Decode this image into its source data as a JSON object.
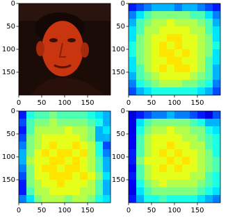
{
  "chart_data": [
    {
      "type": "image",
      "xlim": [
        0,
        200
      ],
      "ylim": [
        200,
        0
      ],
      "xticks": [
        0,
        50,
        100,
        150
      ],
      "yticks": [
        0,
        50,
        100,
        150
      ]
    },
    {
      "type": "heatmap",
      "colormap": "jet",
      "clim": [
        0,
        1
      ],
      "xlim": [
        0,
        200
      ],
      "ylim": [
        200,
        0
      ],
      "xticks": [
        0,
        50,
        100,
        150
      ],
      "yticks": [
        0,
        50,
        100,
        150
      ],
      "values": [
        [
          0.15,
          0.2,
          0.25,
          0.3,
          0.3,
          0.3,
          0.25,
          0.3,
          0.3,
          0.25,
          0.2,
          0.15
        ],
        [
          0.25,
          0.35,
          0.45,
          0.5,
          0.5,
          0.5,
          0.5,
          0.5,
          0.45,
          0.45,
          0.35,
          0.25
        ],
        [
          0.3,
          0.45,
          0.5,
          0.55,
          0.55,
          0.6,
          0.55,
          0.55,
          0.55,
          0.5,
          0.45,
          0.3
        ],
        [
          0.35,
          0.45,
          0.55,
          0.55,
          0.6,
          0.6,
          0.6,
          0.6,
          0.55,
          0.55,
          0.45,
          0.35
        ],
        [
          0.35,
          0.5,
          0.55,
          0.6,
          0.6,
          0.65,
          0.65,
          0.6,
          0.6,
          0.55,
          0.5,
          0.35
        ],
        [
          0.4,
          0.5,
          0.55,
          0.6,
          0.65,
          0.6,
          0.65,
          0.6,
          0.6,
          0.55,
          0.5,
          0.4
        ],
        [
          0.4,
          0.5,
          0.55,
          0.6,
          0.65,
          0.65,
          0.6,
          0.65,
          0.6,
          0.55,
          0.5,
          0.35
        ],
        [
          0.35,
          0.5,
          0.55,
          0.6,
          0.6,
          0.65,
          0.65,
          0.6,
          0.6,
          0.55,
          0.45,
          0.35
        ],
        [
          0.35,
          0.45,
          0.55,
          0.6,
          0.65,
          0.6,
          0.65,
          0.65,
          0.6,
          0.55,
          0.45,
          0.3
        ],
        [
          0.3,
          0.45,
          0.5,
          0.55,
          0.6,
          0.6,
          0.6,
          0.6,
          0.55,
          0.5,
          0.45,
          0.3
        ],
        [
          0.25,
          0.4,
          0.45,
          0.5,
          0.55,
          0.55,
          0.55,
          0.5,
          0.5,
          0.45,
          0.4,
          0.25
        ],
        [
          0.2,
          0.3,
          0.35,
          0.4,
          0.4,
          0.4,
          0.4,
          0.4,
          0.4,
          0.35,
          0.3,
          0.2
        ]
      ]
    },
    {
      "type": "heatmap",
      "colormap": "jet",
      "clim": [
        0,
        1
      ],
      "xlim": [
        0,
        200
      ],
      "ylim": [
        200,
        0
      ],
      "xticks": [
        0,
        50,
        100,
        150
      ],
      "yticks": [
        0,
        50,
        100,
        150
      ],
      "values": [
        [
          0.15,
          0.4,
          0.45,
          0.45,
          0.5,
          0.45,
          0.45,
          0.45,
          0.45,
          0.4,
          0.35,
          0.3
        ],
        [
          0.2,
          0.45,
          0.5,
          0.5,
          0.55,
          0.5,
          0.5,
          0.5,
          0.5,
          0.45,
          0.4,
          0.3
        ],
        [
          0.15,
          0.45,
          0.55,
          0.55,
          0.55,
          0.55,
          0.6,
          0.55,
          0.55,
          0.5,
          0.3,
          0.35
        ],
        [
          0.2,
          0.5,
          0.55,
          0.6,
          0.6,
          0.6,
          0.6,
          0.6,
          0.55,
          0.5,
          0.3,
          0.3
        ],
        [
          0.25,
          0.5,
          0.55,
          0.6,
          0.65,
          0.6,
          0.6,
          0.65,
          0.6,
          0.55,
          0.4,
          0.2
        ],
        [
          0.3,
          0.5,
          0.6,
          0.65,
          0.6,
          0.65,
          0.65,
          0.6,
          0.65,
          0.55,
          0.4,
          0.25
        ],
        [
          0.3,
          0.55,
          0.6,
          0.6,
          0.65,
          0.65,
          0.6,
          0.65,
          0.6,
          0.55,
          0.45,
          0.3
        ],
        [
          0.25,
          0.5,
          0.6,
          0.65,
          0.65,
          0.6,
          0.65,
          0.65,
          0.6,
          0.55,
          0.45,
          0.3
        ],
        [
          0.2,
          0.5,
          0.6,
          0.6,
          0.65,
          0.65,
          0.65,
          0.6,
          0.65,
          0.6,
          0.5,
          0.35
        ],
        [
          0.15,
          0.5,
          0.55,
          0.6,
          0.6,
          0.65,
          0.6,
          0.6,
          0.6,
          0.55,
          0.45,
          0.3
        ],
        [
          0.15,
          0.45,
          0.55,
          0.55,
          0.6,
          0.6,
          0.6,
          0.6,
          0.55,
          0.55,
          0.45,
          0.3
        ],
        [
          0.25,
          0.35,
          0.5,
          0.55,
          0.55,
          0.55,
          0.5,
          0.55,
          0.55,
          0.5,
          0.4,
          0.35
        ]
      ]
    },
    {
      "type": "heatmap",
      "colormap": "jet",
      "clim": [
        0,
        1
      ],
      "xlim": [
        0,
        200
      ],
      "ylim": [
        200,
        0
      ],
      "xticks": [
        0,
        50,
        100,
        150
      ],
      "yticks": [
        0,
        50,
        100,
        150
      ],
      "values": [
        [
          0.1,
          0.15,
          0.2,
          0.25,
          0.25,
          0.3,
          0.25,
          0.25,
          0.2,
          0.15,
          0.1,
          0.2
        ],
        [
          0.1,
          0.35,
          0.45,
          0.5,
          0.5,
          0.5,
          0.5,
          0.5,
          0.45,
          0.4,
          0.3,
          0.3
        ],
        [
          0.1,
          0.4,
          0.5,
          0.55,
          0.55,
          0.6,
          0.55,
          0.55,
          0.5,
          0.5,
          0.4,
          0.35
        ],
        [
          0.12,
          0.45,
          0.55,
          0.6,
          0.6,
          0.6,
          0.6,
          0.55,
          0.55,
          0.5,
          0.45,
          0.4
        ],
        [
          0.12,
          0.45,
          0.55,
          0.6,
          0.6,
          0.65,
          0.6,
          0.6,
          0.55,
          0.55,
          0.45,
          0.4
        ],
        [
          0.15,
          0.45,
          0.55,
          0.6,
          0.65,
          0.6,
          0.65,
          0.6,
          0.6,
          0.55,
          0.5,
          0.4
        ],
        [
          0.15,
          0.5,
          0.6,
          0.6,
          0.6,
          0.65,
          0.6,
          0.65,
          0.6,
          0.55,
          0.5,
          0.45
        ],
        [
          0.12,
          0.45,
          0.55,
          0.6,
          0.65,
          0.6,
          0.65,
          0.6,
          0.6,
          0.55,
          0.5,
          0.45
        ],
        [
          0.15,
          0.45,
          0.55,
          0.6,
          0.6,
          0.6,
          0.6,
          0.6,
          0.55,
          0.55,
          0.45,
          0.4
        ],
        [
          0.12,
          0.4,
          0.5,
          0.55,
          0.6,
          0.55,
          0.55,
          0.55,
          0.55,
          0.5,
          0.45,
          0.4
        ],
        [
          0.1,
          0.35,
          0.45,
          0.5,
          0.5,
          0.5,
          0.5,
          0.5,
          0.5,
          0.45,
          0.4,
          0.35
        ],
        [
          0.15,
          0.3,
          0.4,
          0.4,
          0.45,
          0.4,
          0.4,
          0.4,
          0.4,
          0.35,
          0.3,
          0.25
        ]
      ]
    }
  ]
}
